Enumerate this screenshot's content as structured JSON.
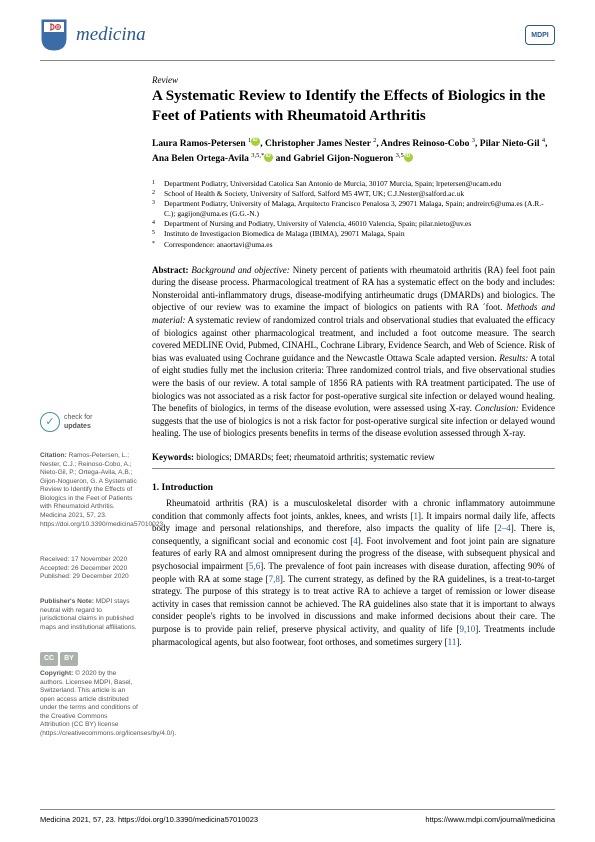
{
  "header": {
    "journal_name": "medicina",
    "publisher_badge": "MDPI"
  },
  "article": {
    "type": "Review",
    "title": "A Systematic Review to Identify the Effects of Biologics in the Feet of Patients with Rheumatoid Arthritis",
    "authors_html": "Laura Ramos-Petersen <sup>1</sup><span class='orcid'></span>, Christopher James Nester <sup>2</sup>, Andres Reinoso-Cobo <sup>3</sup>, Pilar Nieto-Gil <sup>4</sup>, Ana Belen Ortega-Avila <sup>3,5,*</sup><span class='orcid'></span> and Gabriel Gijon-Nogueron <sup>3,5</sup><span class='orcid'></span>",
    "affiliations": [
      {
        "n": "1",
        "text": "Department Podiatry, Universidad Catolica San Antonio de Murcia, 30107 Murcia, Spain; lrpetersen@ucam.edu"
      },
      {
        "n": "2",
        "text": "School of Health & Society, University of Salford, Salford M5 4WT, UK; C.J.Nester@salford.ac.uk"
      },
      {
        "n": "3",
        "text": "Department Podiatry, University of Malaga, Arquitecto Francisco Penalosa 3, 29071 Malaga, Spain; andreirc6@uma.es (A.R.-C.); gagijon@uma.es (G.G.-N.)"
      },
      {
        "n": "4",
        "text": "Department of Nursing and Podiatry, University of Valencia, 46010 Valencia, Spain; pilar.nieto@uv.es"
      },
      {
        "n": "5",
        "text": "Instituto de Investigacion Biomedica de Malaga (IBIMA), 29071 Malaga, Spain"
      },
      {
        "n": "*",
        "text": "Correspondence: anaortavi@uma.es"
      }
    ],
    "abstract_label": "Abstract:",
    "abstract_bg_label": "Background and objective:",
    "abstract_bg": " Ninety percent of patients with rheumatoid arthritis (RA) feel foot pain during the disease process. Pharmacological treatment of RA has a systematic effect on the body and includes: Nonsteroidal anti-inflammatory drugs, disease-modifying antirheumatic drugs (DMARDs) and biologics. The objective of our review was to examine the impact of biologics on patients with RA ´foot. ",
    "abstract_mm_label": "Methods and material:",
    "abstract_mm": " A systematic review of randomized control trials and observational studies that evaluated the efficacy of biologics against other pharmacological treatment, and included a foot outcome measure. The search covered MEDLINE Ovid, Pubmed, CINAHL, Cochrane Library, Evidence Search, and Web of Science. Risk of bias was evaluated using Cochrane guidance and the Newcastle Ottawa Scale adapted version. ",
    "abstract_res_label": "Results:",
    "abstract_res": " A total of eight studies fully met the inclusion criteria: Three randomized control trials, and five observational studies were the basis of our review. A total sample of 1856 RA patients with RA treatment participated. The use of biologics was not associated as a risk factor for post-operative surgical site infection or delayed wound healing. The benefits of biologics, in terms of the disease evolution, were assessed using X-ray. ",
    "abstract_con_label": "Conclusion:",
    "abstract_con": " Evidence suggests that the use of biologics is not a risk factor for post-operative surgical site infection or delayed wound healing. The use of biologics presents benefits in terms of the disease evolution assessed through X-ray.",
    "keywords_label": "Keywords:",
    "keywords": " biologics; DMARDs; feet; rheumatoid arthritis; systematic review",
    "intro_title": "1. Introduction",
    "intro_body": "Rheumatoid arthritis (RA) is a musculoskeletal disorder with a chronic inflammatory autoimmune condition that commonly affects foot joints, ankles, knees, and wrists [1]. It impairs normal daily life, affects body image and personal relationships, and therefore, also impacts the quality of life [2–4]. There is, consequently, a significant social and economic cost [4]. Foot involvement and foot joint pain are signature features of early RA and almost omnipresent during the progress of the disease, with subsequent physical and psychosocial impairment [5,6]. The prevalence of foot pain increases with disease duration, affecting 90% of people with RA at some stage [7,8]. The current strategy, as defined by the RA guidelines, is a treat-to-target strategy. The purpose of this strategy is to treat active RA to achieve a target of remission or lower disease activity in cases that remission cannot be achieved. The RA guidelines also state that it is important to always consider people's rights to be involved in discussions and make informed decisions about their care. The purpose is to provide pain relief, preserve physical activity, and quality of life [9,10]. Treatments include pharmacological agents, but also footwear, foot orthoses, and sometimes surgery [11]."
  },
  "sidebar": {
    "check_line1": "check for",
    "check_line2": "updates",
    "citation_label": "Citation:",
    "citation": " Ramos-Petersen, L.; Nester, C.J.; Reinoso-Cobo, A.; Nieto-Gil, P.; Ortega-Avila, A.B.; Gijon-Nogueron, G. A Systematic Review to Identify the Effects of Biologics in the Feet of Patients with Rheumatoid Arthritis. Medicina 2021, 57, 23. https://doi.org/10.3390/medicina57010023",
    "received": "Received: 17 November 2020",
    "accepted": "Accepted: 26 December 2020",
    "published": "Published: 29 December 2020",
    "pubnote_label": "Publisher's Note:",
    "pubnote": " MDPI stays neutral with regard to jurisdictional claims in published maps and institutional affiliations.",
    "copyright_label": "Copyright:",
    "copyright": " © 2020 by the authors. Licensee MDPI, Basel, Switzerland. This article is an open access article distributed under the terms and conditions of the Creative Commons Attribution (CC BY) license (https://creativecommons.org/licenses/by/4.0/)."
  },
  "footer": {
    "left": "Medicina 2021, 57, 23. https://doi.org/10.3390/medicina57010023",
    "right": "https://www.mdpi.com/journal/medicina"
  }
}
